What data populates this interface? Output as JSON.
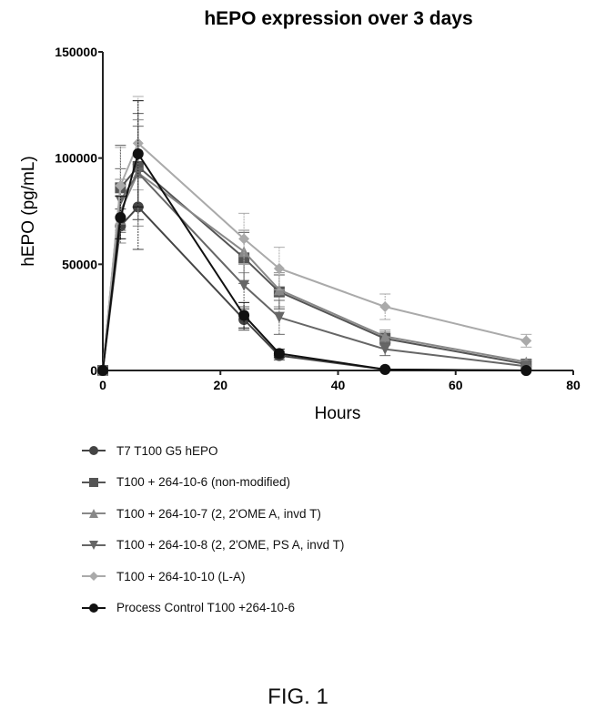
{
  "chart_data": {
    "type": "line",
    "title": "hEPO expression over 3 days",
    "xlabel": "Hours",
    "ylabel": "hEPO (pg/mL)",
    "xlim": [
      0,
      80
    ],
    "ylim": [
      0,
      150000
    ],
    "xticks": [
      0,
      20,
      40,
      60,
      80
    ],
    "yticks": [
      0,
      50000,
      100000,
      150000
    ],
    "xtick_labels": [
      "0",
      "20",
      "40",
      "60",
      "80"
    ],
    "ytick_labels": [
      "0",
      "50000",
      "100000",
      "150000"
    ],
    "grid": false,
    "legend_position": "below",
    "x": [
      0,
      3,
      6,
      24,
      30,
      48,
      72
    ],
    "series": [
      {
        "name": "T7 T100 G5 hEPO",
        "marker": "circle",
        "color": "#444444",
        "values": [
          0,
          68000,
          77000,
          24000,
          7000,
          500,
          0
        ],
        "errors": [
          0,
          8000,
          20000,
          5000,
          2000,
          500,
          0
        ]
      },
      {
        "name": "T100 + 264-10-6 (non-modified)",
        "marker": "square",
        "color": "#555555",
        "values": [
          0,
          86000,
          96000,
          53000,
          37000,
          15000,
          3000
        ],
        "errors": [
          0,
          20000,
          25000,
          12000,
          8000,
          3000,
          1000
        ]
      },
      {
        "name": "T100 + 264-10-7 (2, 2'OME A, invd T)",
        "marker": "triangle-up",
        "color": "#888888",
        "values": [
          0,
          75000,
          93000,
          56000,
          38000,
          16000,
          4000
        ],
        "errors": [
          0,
          15000,
          25000,
          10000,
          8000,
          3000,
          1000
        ]
      },
      {
        "name": "T100 + 264-10-8 (2, 2'OME, PS A, invd T)",
        "marker": "triangle-down",
        "color": "#666666",
        "values": [
          0,
          80000,
          93000,
          40000,
          25000,
          10000,
          2000
        ],
        "errors": [
          0,
          15000,
          22000,
          10000,
          8000,
          3000,
          1000
        ]
      },
      {
        "name": "T100 + 264-10-10 (L-A)",
        "marker": "diamond",
        "color": "#aaaaaa",
        "values": [
          0,
          87000,
          107000,
          62000,
          48000,
          30000,
          14000
        ],
        "errors": [
          0,
          18000,
          22000,
          12000,
          10000,
          6000,
          3000
        ]
      },
      {
        "name": "Process Control T100 +264-10-6",
        "marker": "circle",
        "color": "#111111",
        "values": [
          0,
          72000,
          102000,
          26000,
          8000,
          500,
          0
        ],
        "errors": [
          0,
          10000,
          25000,
          6000,
          2000,
          500,
          0
        ]
      }
    ]
  },
  "figure_label": "FIG. 1"
}
